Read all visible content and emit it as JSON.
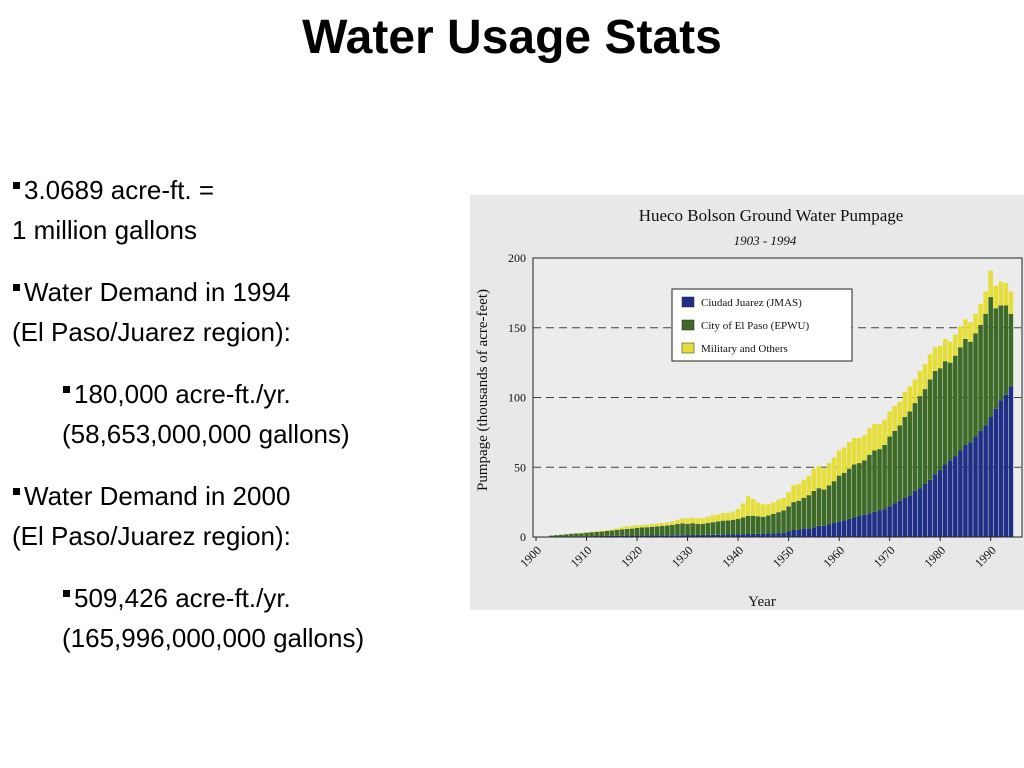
{
  "title": "Water Usage Stats",
  "bullets": [
    {
      "lines": [
        "3.0689 acre-ft. =",
        "1 million gallons"
      ],
      "level": 1
    },
    {
      "lines": [
        "Water Demand in 1994",
        "(El Paso/Juarez region):"
      ],
      "level": 1
    },
    {
      "lines": [
        "180,000 acre-ft./yr.",
        "(58,653,000,000 gallons)"
      ],
      "level": 2
    },
    {
      "lines": [
        "Water Demand in 2000",
        "(El Paso/Juarez region):"
      ],
      "level": 1
    },
    {
      "lines": [
        "509,426 acre-ft./yr.",
        "(165,996,000,000 gallons)"
      ],
      "level": 2
    }
  ],
  "chart_data": {
    "type": "stacked_bar",
    "title": "Hueco Bolson Ground Water Pumpage",
    "subtitle": "1903 - 1994",
    "y_label": "Pumpage (thousands of acre-feet)",
    "x_label": "Year",
    "xlim": [
      1900,
      1996
    ],
    "xticks": [
      1900,
      1910,
      1920,
      1930,
      1940,
      1950,
      1960,
      1970,
      1980,
      1990
    ],
    "ylim": [
      0,
      200
    ],
    "yticks": [
      0,
      50,
      100,
      150,
      200
    ],
    "grid": true,
    "x": [
      1903,
      1904,
      1905,
      1906,
      1907,
      1908,
      1909,
      1910,
      1911,
      1912,
      1913,
      1914,
      1915,
      1916,
      1917,
      1918,
      1919,
      1920,
      1921,
      1922,
      1923,
      1924,
      1925,
      1926,
      1927,
      1928,
      1929,
      1930,
      1931,
      1932,
      1933,
      1934,
      1935,
      1936,
      1937,
      1938,
      1939,
      1940,
      1941,
      1942,
      1943,
      1944,
      1945,
      1946,
      1947,
      1948,
      1949,
      1950,
      1951,
      1952,
      1953,
      1954,
      1955,
      1956,
      1957,
      1958,
      1959,
      1960,
      1961,
      1962,
      1963,
      1964,
      1965,
      1966,
      1967,
      1968,
      1969,
      1970,
      1971,
      1972,
      1973,
      1974,
      1975,
      1976,
      1977,
      1978,
      1979,
      1980,
      1981,
      1982,
      1983,
      1984,
      1985,
      1986,
      1987,
      1988,
      1989,
      1990,
      1991,
      1992,
      1993,
      1994
    ],
    "series": [
      {
        "name": "Ciudad Juarez (JMAS)",
        "color": "#1f2f86",
        "values": [
          0.3,
          0.3,
          0.4,
          0.4,
          0.5,
          0.5,
          0.5,
          0.6,
          0.6,
          0.7,
          0.7,
          0.8,
          0.8,
          0.9,
          0.9,
          1.0,
          1.0,
          1.0,
          1.0,
          1.0,
          1.1,
          1.1,
          1.2,
          1.2,
          1.2,
          1.3,
          1.3,
          1.4,
          1.4,
          1.4,
          1.5,
          1.5,
          1.6,
          1.6,
          1.7,
          1.8,
          1.8,
          2.0,
          2.0,
          2.2,
          2.2,
          2.3,
          2.4,
          2.5,
          2.6,
          2.8,
          3.0,
          4,
          5,
          5,
          6,
          6,
          7,
          8,
          8,
          9,
          10,
          11,
          12,
          13,
          14,
          15,
          16,
          17,
          18,
          19,
          20,
          22,
          24,
          26,
          28,
          30,
          33,
          35,
          38,
          41,
          45,
          48,
          52,
          55,
          58,
          62,
          66,
          68,
          72,
          76,
          80,
          86,
          92,
          98,
          102,
          108
        ]
      },
      {
        "name": "City of El Paso (EPWU)",
        "color": "#3e6a27",
        "values": [
          0.7,
          1.0,
          1.2,
          1.5,
          1.8,
          2.0,
          2.2,
          2.5,
          2.8,
          3.0,
          3.2,
          3.5,
          3.8,
          4.2,
          4.5,
          4.8,
          5.0,
          5.5,
          5.8,
          6.0,
          6.2,
          6.5,
          6.8,
          7.0,
          7.5,
          8.0,
          8.5,
          8.0,
          8.5,
          8.0,
          8.0,
          8.5,
          9.0,
          9.5,
          10,
          10,
          10.5,
          11,
          12,
          13,
          13,
          12.5,
          12,
          13,
          14,
          15,
          16,
          18,
          20,
          21,
          22,
          24,
          26,
          27,
          26,
          28,
          30,
          33,
          34,
          36,
          38,
          38,
          39,
          42,
          44,
          44,
          46,
          50,
          52,
          54,
          58,
          60,
          63,
          66,
          68,
          72,
          74,
          73,
          74,
          70,
          72,
          74,
          76,
          72,
          74,
          76,
          80,
          86,
          72,
          68,
          64,
          52
        ]
      },
      {
        "name": "Military and Others",
        "color": "#e6de3a",
        "values": [
          0,
          0,
          0,
          0,
          0,
          0.2,
          0.3,
          0.3,
          0.4,
          0.5,
          0.5,
          0.6,
          0.8,
          1.0,
          1.5,
          2.0,
          2.0,
          2.0,
          1.8,
          1.8,
          2.0,
          2.0,
          2.0,
          2.2,
          2.5,
          3.0,
          3.5,
          4.0,
          4.0,
          4.0,
          4.0,
          4.5,
          5.0,
          5.0,
          5.5,
          5.5,
          6.0,
          7.0,
          10,
          14,
          12,
          10,
          9,
          8,
          8,
          9,
          9,
          10,
          12,
          12,
          13,
          14,
          16,
          16,
          15,
          16,
          17,
          18,
          18,
          19,
          19,
          18,
          18,
          19,
          19,
          18,
          18,
          18,
          18,
          17,
          18,
          18,
          17,
          18,
          18,
          18,
          17,
          16,
          16,
          15,
          15,
          15,
          14,
          14,
          14,
          15,
          16,
          19,
          16,
          17,
          16,
          16
        ]
      }
    ]
  }
}
